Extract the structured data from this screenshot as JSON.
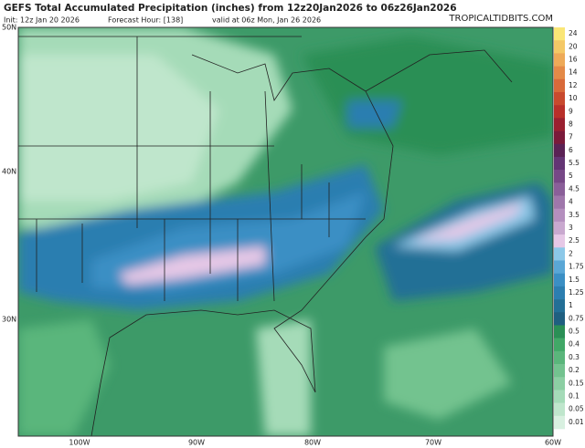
{
  "header": {
    "title": "GEFS Total Accumulated Precipitation (inches) from 12z20Jan2026 to 06z26Jan2026",
    "init": "Init: 12z Jan 20 2026",
    "forecast_hour": "Forecast Hour: [138]",
    "valid": "valid at 06z Mon, Jan 26 2026",
    "site": "TROPICALTIDBITS.COM"
  },
  "latitude_labels": [
    "50N",
    "40N",
    "30N"
  ],
  "longitude_labels": [
    "100W",
    "90W",
    "80W",
    "70W",
    "60W"
  ],
  "legend": [
    {
      "label": "24",
      "color": "#fae676"
    },
    {
      "label": "20",
      "color": "#f4c866"
    },
    {
      "label": "16",
      "color": "#eeaa58"
    },
    {
      "label": "14",
      "color": "#e48a48"
    },
    {
      "label": "12",
      "color": "#d86a3a"
    },
    {
      "label": "10",
      "color": "#c84a2e"
    },
    {
      "label": "9",
      "color": "#b8302a"
    },
    {
      "label": "8",
      "color": "#9a2030"
    },
    {
      "label": "7",
      "color": "#7a1a3a"
    },
    {
      "label": "6",
      "color": "#5a2255"
    },
    {
      "label": "5.5",
      "color": "#633574"
    },
    {
      "label": "5",
      "color": "#764886"
    },
    {
      "label": "4.5",
      "color": "#8a5f99"
    },
    {
      "label": "4",
      "color": "#9f77ab"
    },
    {
      "label": "3.5",
      "color": "#b48fbe"
    },
    {
      "label": "3",
      "color": "#c9a9cf"
    },
    {
      "label": "2.5",
      "color": "#e6c8e6"
    },
    {
      "label": "2",
      "color": "#8cc8e8"
    },
    {
      "label": "1.75",
      "color": "#5aa7d6"
    },
    {
      "label": "1.5",
      "color": "#3b8fc4"
    },
    {
      "label": "1.25",
      "color": "#2c7eb0"
    },
    {
      "label": "1",
      "color": "#236f96"
    },
    {
      "label": "0.75",
      "color": "#1f5f80"
    },
    {
      "label": "0.5",
      "color": "#2a8f55"
    },
    {
      "label": "0.4",
      "color": "#41a867"
    },
    {
      "label": "0.3",
      "color": "#5ab67b"
    },
    {
      "label": "0.2",
      "color": "#73c38f"
    },
    {
      "label": "0.15",
      "color": "#8ccfa3"
    },
    {
      "label": "0.1",
      "color": "#a5dbb8"
    },
    {
      "label": "0.05",
      "color": "#bfe6cc"
    },
    {
      "label": "0.01",
      "color": "#d8f0e0"
    }
  ]
}
